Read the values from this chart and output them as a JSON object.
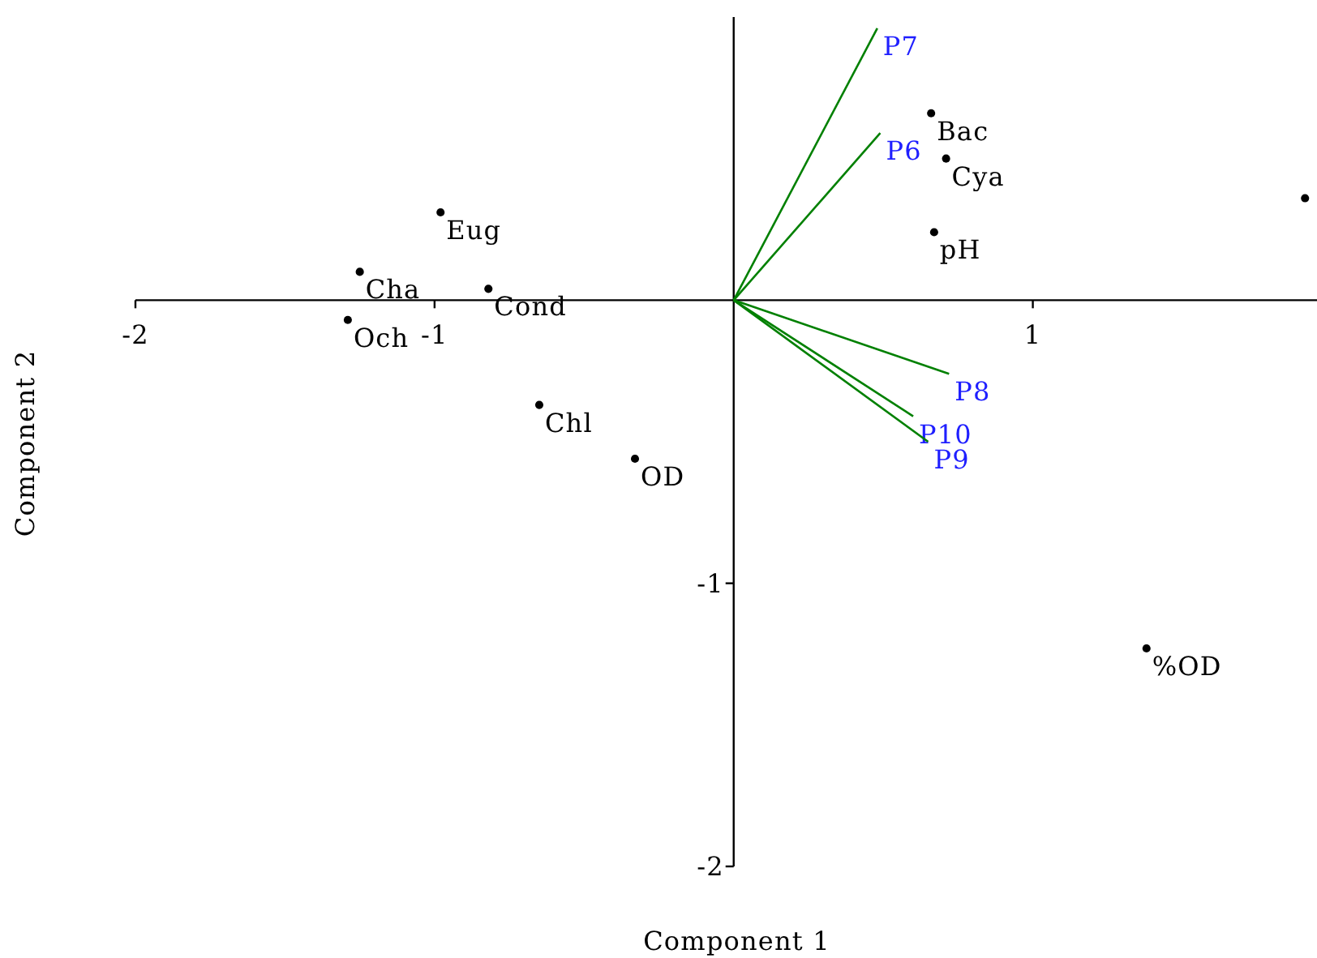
{
  "chart_data": {
    "type": "scatter",
    "xlabel": "Component 1",
    "ylabel": "Component 2",
    "xlim": [
      -2,
      1.95
    ],
    "ylim": [
      -2,
      1
    ],
    "xticks": [
      -2,
      -1,
      1
    ],
    "yticks": [
      -2,
      -1
    ],
    "marker": "circle",
    "series": [
      {
        "name": "Eug",
        "color": "#000000",
        "x": [
          -0.98
        ],
        "values": [
          0.31
        ]
      },
      {
        "name": "Cha",
        "color": "#000000",
        "x": [
          -1.25
        ],
        "values": [
          0.1
        ]
      },
      {
        "name": "Och",
        "color": "#000000",
        "x": [
          -1.29
        ],
        "values": [
          -0.07
        ]
      },
      {
        "name": "Cond",
        "color": "#000000",
        "x": [
          -0.82
        ],
        "values": [
          0.04
        ]
      },
      {
        "name": "Chl",
        "color": "#000000",
        "x": [
          -0.65
        ],
        "values": [
          -0.37
        ]
      },
      {
        "name": "OD",
        "color": "#000000",
        "x": [
          -0.33
        ],
        "values": [
          -0.56
        ]
      },
      {
        "name": "Bac",
        "color": "#000000",
        "x": [
          0.66
        ],
        "values": [
          0.66
        ]
      },
      {
        "name": "Cya",
        "color": "#000000",
        "x": [
          0.71
        ],
        "values": [
          0.5
        ]
      },
      {
        "name": "pH",
        "color": "#000000",
        "x": [
          0.67
        ],
        "values": [
          0.24
        ]
      },
      {
        "name": "%OD",
        "color": "#000000",
        "x": [
          1.38
        ],
        "values": [
          -1.23
        ]
      },
      {
        "color": "#000000",
        "x": [
          1.91
        ],
        "values": [
          0.36
        ]
      },
      {
        "type": "line",
        "name": "P7",
        "color": "#008000",
        "marker": "none",
        "x": [
          0,
          0.48
        ],
        "values": [
          0,
          0.96
        ]
      },
      {
        "type": "line",
        "name": "P6",
        "color": "#008000",
        "marker": "none",
        "x": [
          0,
          0.49
        ],
        "values": [
          0,
          0.59
        ]
      },
      {
        "type": "line",
        "name": "P8",
        "color": "#008000",
        "marker": "none",
        "x": [
          0,
          0.72
        ],
        "values": [
          0,
          -0.26
        ]
      },
      {
        "type": "line",
        "name": "P10",
        "color": "#008000",
        "marker": "none",
        "x": [
          0,
          0.6
        ],
        "values": [
          0,
          -0.41
        ]
      },
      {
        "type": "line",
        "name": "P9",
        "color": "#008000",
        "marker": "none",
        "x": [
          0,
          0.65
        ],
        "values": [
          0,
          -0.5
        ]
      }
    ]
  }
}
